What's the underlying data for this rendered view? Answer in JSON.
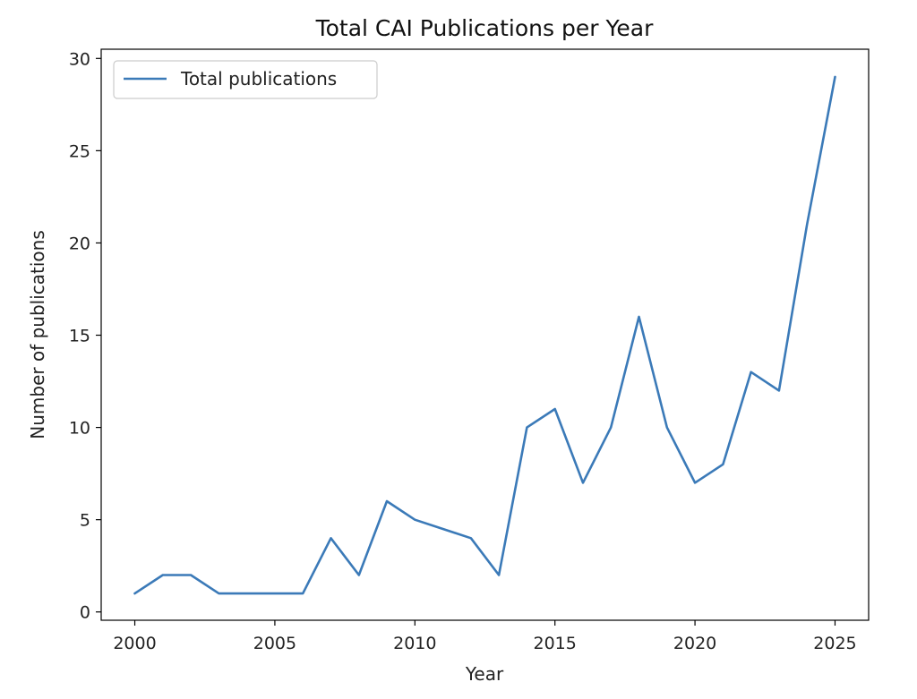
{
  "chart_data": {
    "type": "line",
    "title": "Total CAI Publications per Year",
    "xlabel": "Year",
    "ylabel": "Number of publications",
    "x": [
      2000,
      2001,
      2002,
      2003,
      2004,
      2005,
      2006,
      2007,
      2008,
      2009,
      2010,
      2011,
      2012,
      2013,
      2014,
      2015,
      2016,
      2017,
      2018,
      2019,
      2020,
      2021,
      2022,
      2023,
      2024,
      2025
    ],
    "series": [
      {
        "name": "Total publications",
        "color": "#3b7ab8",
        "values": [
          1,
          2,
          2,
          1,
          1,
          1,
          1,
          4,
          2,
          6,
          5,
          4.5,
          4,
          2,
          10,
          11,
          7,
          10,
          16,
          10,
          7,
          8,
          13,
          12,
          21,
          29
        ]
      }
    ],
    "xlim": [
      1998.8,
      2026.2
    ],
    "ylim": [
      -0.45,
      30.5
    ],
    "xticks": [
      2000,
      2005,
      2010,
      2015,
      2020,
      2025
    ],
    "yticks": [
      0,
      5,
      10,
      15,
      20,
      25,
      30
    ],
    "grid": false,
    "legend_position": "top-left"
  }
}
